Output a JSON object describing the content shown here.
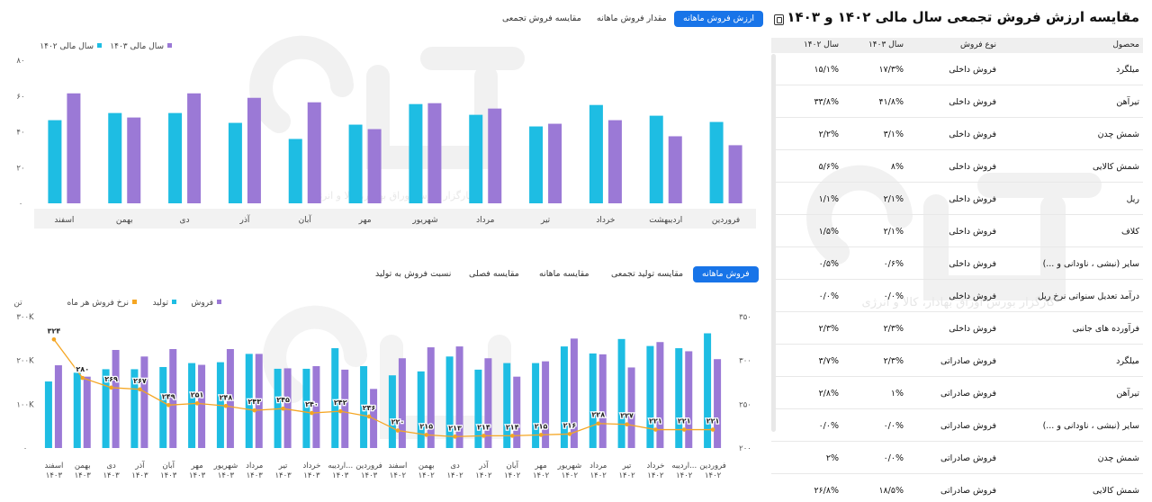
{
  "brand": "آگاه",
  "watermark": "کارگزار بورس اوراق بهادار، کالا و انرژی",
  "top_tabs": [
    "ارزش فروش ماهانه",
    "مقدار فروش ماهانه",
    "مقایسه فروش تجمعی"
  ],
  "bottom_tabs": [
    "فروش ماهانه",
    "مقایسه تولید تجمعی",
    "مقایسه ماهانه",
    "مقایسه فصلی",
    "نسبت فروش به تولید"
  ],
  "table": {
    "title": "مقایسه ارزش فروش تجمعی سال مالی ۱۴۰۲ و ۱۴۰۳",
    "headers": [
      "محصول",
      "نوع فروش",
      "سال ۱۴۰۳",
      "سال ۱۴۰۲"
    ],
    "rows": [
      [
        "میلگرد",
        "فروش داخلی",
        "۱۷/۳%",
        "۱۵/۱%"
      ],
      [
        "تیرآهن",
        "فروش داخلی",
        "۴۱/۸%",
        "۳۳/۸%"
      ],
      [
        "شمش چدن",
        "فروش داخلی",
        "۳/۱%",
        "۲/۲%"
      ],
      [
        "شمش کالایی",
        "فروش داخلی",
        "۸%",
        "۵/۶%"
      ],
      [
        "ریل",
        "فروش داخلی",
        "۲/۱%",
        "۱/۱%"
      ],
      [
        "کلاف",
        "فروش داخلی",
        "۲/۱%",
        "۱/۵%"
      ],
      [
        "سایر (نبشی ، ناودانی و ...)",
        "فروش داخلی",
        "۰/۶%",
        "۰/۵%"
      ],
      [
        "درآمد تعدیل سنواتی نرخ ریل",
        "فروش داخلی",
        "۰/۰%",
        "۰/۰%"
      ],
      [
        "فرآورده های جانبی",
        "فروش داخلی",
        "۲/۳%",
        "۲/۳%"
      ],
      [
        "میلگرد",
        "فروش صادراتی",
        "۲/۳%",
        "۳/۷%"
      ],
      [
        "تیرآهن",
        "فروش صادراتی",
        "۱%",
        "۲/۸%"
      ],
      [
        "سایر (نبشی ، ناودانی و ...)",
        "فروش صادراتی",
        "۰/۰%",
        "۰/۰%"
      ],
      [
        "شمش چدن",
        "فروش صادراتی",
        "۰/۰%",
        "۲%"
      ],
      [
        "شمش کالایی",
        "فروش صادراتی",
        "۱۸/۵%",
        "۲۶/۸%"
      ]
    ]
  },
  "chart_data": [
    {
      "type": "bar",
      "legend": [
        "سال مالی ۱۴۰۳",
        "سال مالی ۱۴۰۲"
      ],
      "categories": [
        "فروردین",
        "اردیبهشت",
        "خرداد",
        "تیر",
        "مرداد",
        "شهریور",
        "مهر",
        "آبان",
        "آذر",
        "دی",
        "بهمن",
        "اسفند"
      ],
      "series": [
        {
          "name": "سال مالی ۱۴۰۲",
          "values": [
            45.5,
            49,
            55,
            43,
            49.5,
            55.5,
            44,
            36,
            45,
            50.5,
            50.5,
            46.5
          ]
        },
        {
          "name": "سال مالی ۱۴۰۳",
          "values": [
            32.5,
            37.5,
            46.5,
            44.5,
            53,
            56,
            41.5,
            56.5,
            59,
            61.5,
            48,
            61.5
          ]
        }
      ],
      "ylim": [
        0,
        80
      ],
      "yticks": [
        "۰",
        "۲۰",
        "۴۰",
        "۶۰",
        "۸۰"
      ],
      "colors": {
        "a": "#1ebde3",
        "b": "#9b79d6"
      }
    },
    {
      "type": "bar+line",
      "legend": [
        "فروش",
        "تولید",
        "نرخ فروش هر ماه"
      ],
      "left_unit": "تن",
      "categories": [
        [
          "فروردین",
          "۱۴۰۲"
        ],
        [
          "اردیبه...",
          "۱۴۰۲"
        ],
        [
          "خرداد",
          "۱۴۰۲"
        ],
        [
          "تیر",
          "۱۴۰۲"
        ],
        [
          "مرداد",
          "۱۴۰۲"
        ],
        [
          "شهریور",
          "۱۴۰۲"
        ],
        [
          "مهر",
          "۱۴۰۲"
        ],
        [
          "آبان",
          "۱۴۰۲"
        ],
        [
          "آذر",
          "۱۴۰۲"
        ],
        [
          "دی",
          "۱۴۰۲"
        ],
        [
          "بهمن",
          "۱۴۰۲"
        ],
        [
          "اسفند",
          "۱۴۰۲"
        ],
        [
          "فروردین",
          "۱۴۰۳"
        ],
        [
          "اردیبه...",
          "۱۴۰۳"
        ],
        [
          "خرداد",
          "۱۴۰۳"
        ],
        [
          "تیر",
          "۱۴۰۳"
        ],
        [
          "مرداد",
          "۱۴۰۳"
        ],
        [
          "شهریور",
          "۱۴۰۳"
        ],
        [
          "مهر",
          "۱۴۰۳"
        ],
        [
          "آبان",
          "۱۴۰۳"
        ],
        [
          "آذر",
          "۱۴۰۳"
        ],
        [
          "دی",
          "۱۴۰۳"
        ],
        [
          "بهمن",
          "۱۴۰۳"
        ],
        [
          "اسفند",
          "۱۴۰۳"
        ]
      ],
      "series": [
        {
          "name": "تولید",
          "values": [
            262000,
            228000,
            233000,
            249000,
            216000,
            232000,
            194000,
            194000,
            179000,
            209000,
            175000,
            166000,
            187000,
            228000,
            181000,
            181000,
            215000,
            196000,
            194000,
            185000,
            180000,
            180000,
            172000,
            152000
          ]
        },
        {
          "name": "فروش",
          "values": [
            203000,
            221000,
            242000,
            184000,
            214000,
            250000,
            198000,
            163000,
            205000,
            232000,
            230000,
            205000,
            135000,
            179000,
            187000,
            182000,
            215000,
            226000,
            190000,
            226000,
            209000,
            224000,
            163000,
            189000
          ]
        },
        {
          "name": "نرخ فروش هر ماه",
          "values": [
            221,
            221,
            221,
            227,
            228,
            216,
            215,
            214,
            214,
            213,
            215,
            220,
            236,
            242,
            240,
            245,
            243,
            248,
            251,
            249,
            267,
            269,
            280,
            324
          ]
        }
      ],
      "line_labels": [
        "۲۲۱",
        "۲۲۱",
        "۲۲۱",
        "۲۲۷",
        "۲۲۸",
        "۲۱۶",
        "۲۱۵",
        "۲۱۴",
        "۲۱۴",
        "۲۱۳",
        "۲۱۵",
        "۲۲۰",
        "۲۳۶",
        "۲۴۲",
        "۲۴۰",
        "۲۴۵",
        "۲۴۳",
        "۲۴۸",
        "۲۵۱",
        "۲۴۹",
        "۲۶۷",
        "۲۶۹",
        "۲۸۰",
        "۳۲۴"
      ],
      "ylim_left": [
        0,
        300000
      ],
      "yticks_left": [
        "۰",
        "۱۰۰K",
        "۲۰۰K",
        "۳۰۰K"
      ],
      "ylim_right": [
        200,
        350
      ],
      "yticks_right": [
        "۲۰۰",
        "۲۵۰",
        "۳۰۰",
        "۳۵۰"
      ],
      "colors": {
        "prod": "#1ebde3",
        "sales": "#9b79d6",
        "rate": "#f5a623"
      }
    }
  ]
}
